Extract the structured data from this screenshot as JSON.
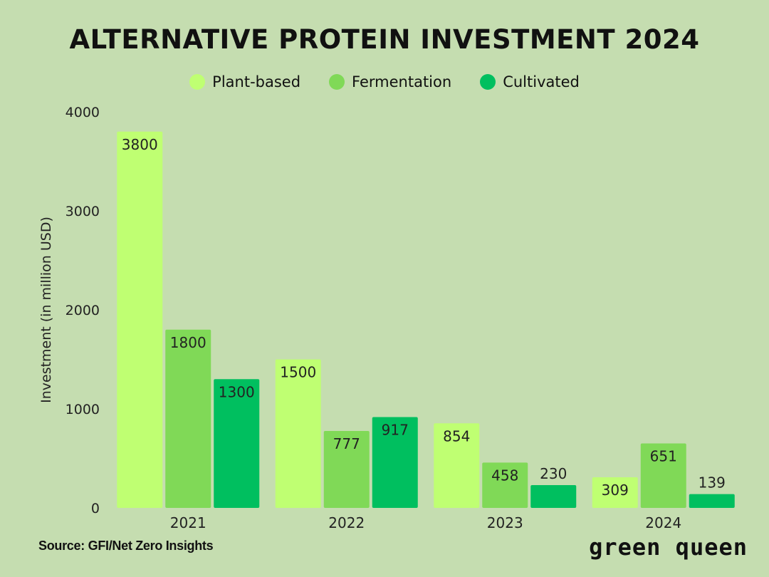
{
  "source": "Source: GFI/Net Zero Insights",
  "brand": "green queen",
  "colors": {
    "background": "#c5ddb0",
    "plant_based": "#bfff72",
    "fermentation": "#80d957",
    "cultivated": "#00bf5f"
  },
  "chart_data": {
    "type": "bar",
    "title": "ALTERNATIVE PROTEIN INVESTMENT 2024",
    "xlabel": "",
    "ylabel": "Investment (in million USD)",
    "ylim": [
      0,
      4000
    ],
    "yticks": [
      0,
      1000,
      2000,
      3000,
      4000
    ],
    "legend_position": "top-center",
    "categories": [
      "2021",
      "2022",
      "2023",
      "2024"
    ],
    "series": [
      {
        "name": "Plant-based",
        "color": "#bfff72",
        "values": [
          3800,
          1500,
          854,
          309
        ]
      },
      {
        "name": "Fermentation",
        "color": "#80d957",
        "values": [
          1800,
          777,
          458,
          651
        ]
      },
      {
        "name": "Cultivated",
        "color": "#00bf5f",
        "values": [
          1300,
          917,
          230,
          139
        ]
      }
    ]
  }
}
